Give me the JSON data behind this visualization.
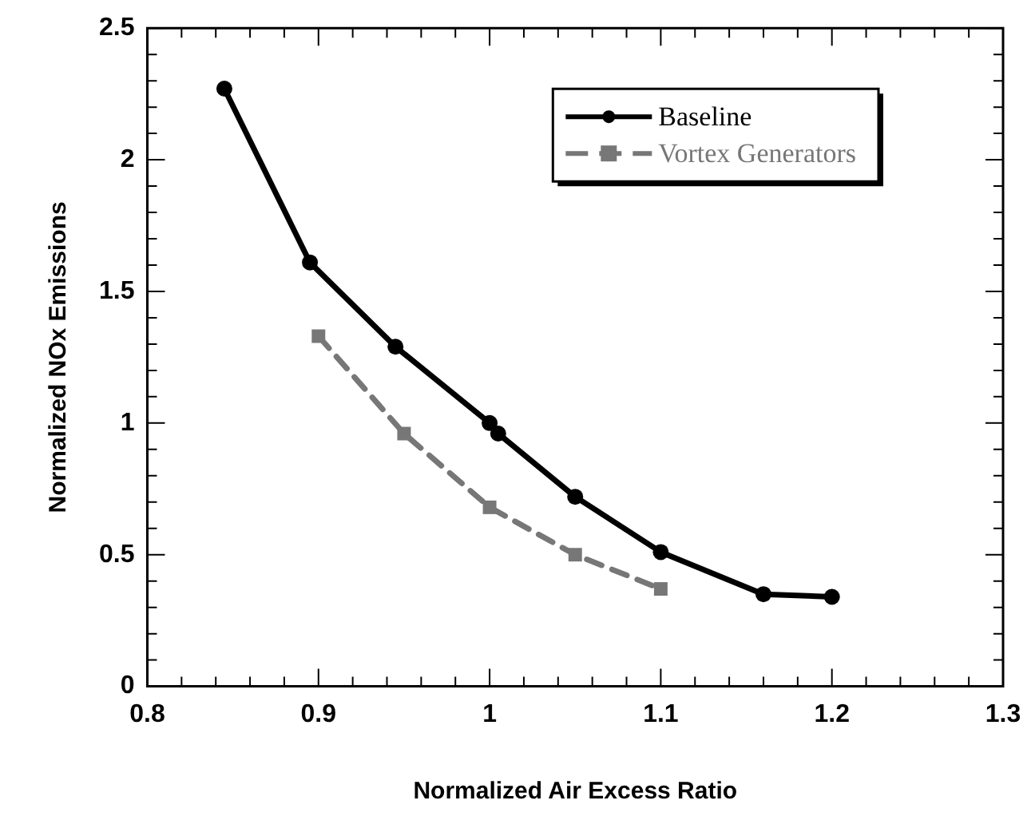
{
  "chart_data": {
    "type": "line",
    "xlabel": "Normalized Air Excess Ratio",
    "ylabel": "Normalized NOx Emissions",
    "xlim": [
      0.8,
      1.3
    ],
    "ylim": [
      0,
      2.5
    ],
    "xticks": [
      0.8,
      {
        "value": 0.82,
        "label": null
      },
      {
        "value": 0.84,
        "label": null
      },
      {
        "value": 0.86,
        "label": null
      },
      {
        "value": 0.88,
        "label": null
      },
      0.9,
      {
        "value": 0.92,
        "label": null
      },
      {
        "value": 0.94,
        "label": null
      },
      {
        "value": 0.96,
        "label": null
      },
      {
        "value": 0.98,
        "label": null
      },
      1,
      {
        "value": 1.02,
        "label": null
      },
      {
        "value": 1.04,
        "label": null
      },
      {
        "value": 1.06,
        "label": null
      },
      {
        "value": 1.08,
        "label": null
      },
      1.1,
      {
        "value": 1.12,
        "label": null
      },
      {
        "value": 1.14,
        "label": null
      },
      {
        "value": 1.16,
        "label": null
      },
      {
        "value": 1.18,
        "label": null
      },
      1.2,
      {
        "value": 1.22,
        "label": null
      },
      {
        "value": 1.24,
        "label": null
      },
      {
        "value": 1.26,
        "label": null
      },
      {
        "value": 1.28,
        "label": null
      },
      1.3
    ],
    "yticks": [
      0,
      {
        "value": 0.1,
        "label": null
      },
      {
        "value": 0.2,
        "label": null
      },
      {
        "value": 0.3,
        "label": null
      },
      {
        "value": 0.4,
        "label": null
      },
      0.5,
      {
        "value": 0.6,
        "label": null
      },
      {
        "value": 0.7,
        "label": null
      },
      {
        "value": 0.8,
        "label": null
      },
      {
        "value": 0.9,
        "label": null
      },
      1,
      {
        "value": 1.1,
        "label": null
      },
      {
        "value": 1.2,
        "label": null
      },
      {
        "value": 1.3,
        "label": null
      },
      {
        "value": 1.4,
        "label": null
      },
      1.5,
      {
        "value": 1.6,
        "label": null
      },
      {
        "value": 1.7,
        "label": null
      },
      {
        "value": 1.8,
        "label": null
      },
      {
        "value": 1.9,
        "label": null
      },
      2,
      {
        "value": 2.1,
        "label": null
      },
      {
        "value": 2.2,
        "label": null
      },
      {
        "value": 2.3,
        "label": null
      },
      {
        "value": 2.4,
        "label": null
      },
      2.5
    ],
    "grid": false,
    "legend": "top right",
    "series": [
      {
        "name": "Baseline",
        "color": "#000000",
        "marker": "circle",
        "line_style": "solid",
        "x": [
          0.845,
          0.895,
          0.945,
          1.0,
          1.005,
          1.05,
          1.1,
          1.16,
          1.2
        ],
        "values": [
          2.27,
          1.61,
          1.29,
          1.0,
          0.96,
          0.72,
          0.51,
          0.35,
          0.34
        ]
      },
      {
        "name": "Vortex Generators",
        "color": "#777777",
        "marker": "square",
        "line_style": "dashed",
        "x": [
          0.9,
          0.95,
          1.0,
          1.05,
          1.1
        ],
        "values": [
          1.33,
          0.96,
          0.68,
          0.5,
          0.37
        ]
      }
    ]
  }
}
